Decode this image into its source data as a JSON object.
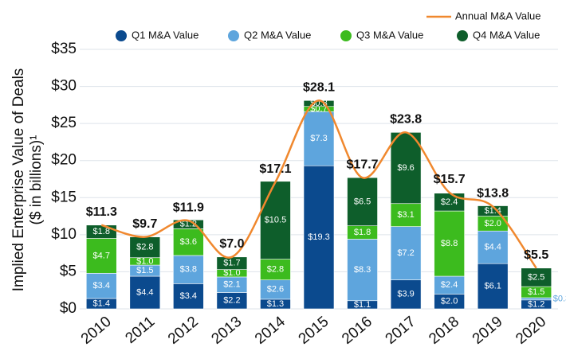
{
  "chart_data": {
    "type": "stacked-bar-line",
    "y_label": [
      "Implied Enterprise Value of Deals",
      "($ in billions)¹"
    ],
    "categories": [
      "2010",
      "2011",
      "2012",
      "2013",
      "2014",
      "2015",
      "2016",
      "2017",
      "2018",
      "2019",
      "2020"
    ],
    "series": [
      {
        "name": "Q1 M&A Value",
        "color": "#0b4a8e",
        "values": [
          1.4,
          4.4,
          3.4,
          2.2,
          1.3,
          19.3,
          1.1,
          3.9,
          2.0,
          6.1,
          1.2
        ],
        "value_labels": [
          "$1.4",
          "$4.4",
          "$3.4",
          "$2.2",
          "$1.3",
          "$19.3",
          "$1.1",
          "$3.9",
          "$2.0",
          "$6.1",
          "$1.2"
        ]
      },
      {
        "name": "Q2 M&A Value",
        "color": "#5ea5dd",
        "values": [
          3.4,
          1.5,
          3.8,
          2.1,
          2.6,
          7.3,
          8.3,
          7.2,
          2.4,
          4.4,
          0.3
        ],
        "value_labels": [
          "$3.4",
          "$1.5",
          "$3.8",
          "$2.1",
          "$2.6",
          "$7.3",
          "$8.3",
          "$7.2",
          "$2.4",
          "$4.4",
          "$0.3"
        ]
      },
      {
        "name": "Q3 M&A Value",
        "color": "#3cbb1e",
        "values": [
          4.7,
          1.0,
          3.6,
          1.0,
          2.8,
          0.7,
          1.8,
          3.1,
          8.8,
          2.0,
          1.5
        ],
        "value_labels": [
          "$4.7",
          "$1.0",
          "$3.6",
          "$1.0",
          "$2.8",
          "$0.7",
          "$1.8",
          "$3.1",
          "$8.8",
          "$2.0",
          "$1.5"
        ]
      },
      {
        "name": "Q4 M&A Value",
        "color": "#0e5e2b",
        "values": [
          1.8,
          2.8,
          1.2,
          1.7,
          10.5,
          0.8,
          6.5,
          9.6,
          2.4,
          1.4,
          2.5
        ],
        "value_labels": [
          "$1.8",
          "$2.8",
          "$1.2",
          "$1.7",
          "$10.5",
          "$0.8",
          "$6.5",
          "$9.6",
          "$2.4",
          "$1.4",
          "$2.5"
        ]
      }
    ],
    "line": {
      "name": "Annual M&A Value",
      "color": "#f0882e",
      "values": [
        11.3,
        9.7,
        11.9,
        7.0,
        17.1,
        28.1,
        17.7,
        23.8,
        15.7,
        13.8,
        5.5
      ],
      "value_labels": [
        "$11.3",
        "$9.7",
        "$11.9",
        "$7.0",
        "$17.1",
        "$28.1",
        "$17.7",
        "$23.8",
        "$15.7",
        "$13.8",
        "$5.5"
      ]
    },
    "ylim": [
      0,
      35
    ],
    "yticks": [
      {
        "value": 0,
        "label": "$0"
      },
      {
        "value": 5,
        "label": "$5"
      },
      {
        "value": 10,
        "label": "$10"
      },
      {
        "value": 15,
        "label": "$15"
      },
      {
        "value": 20,
        "label": "$20"
      },
      {
        "value": 25,
        "label": "$25"
      },
      {
        "value": 30,
        "label": "$30"
      },
      {
        "value": 35,
        "label": "$35"
      }
    ],
    "grid": true
  }
}
